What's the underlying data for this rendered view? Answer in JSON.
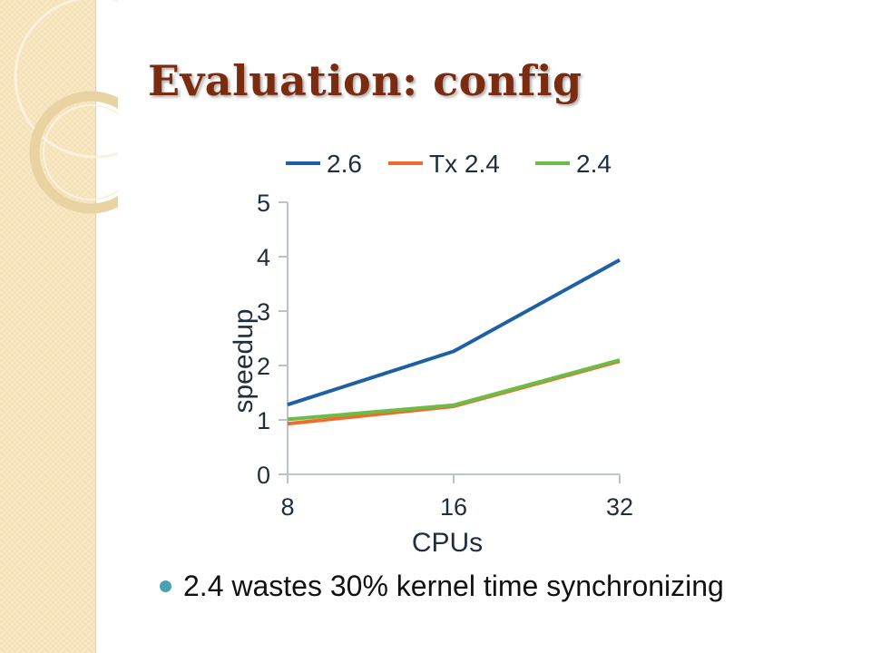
{
  "slide": {
    "title": "Evaluation: config",
    "bullet": "2.4 wastes 30% kernel time synchronizing"
  },
  "colors": {
    "title": "#7a2b10",
    "strip": "#f5e2b8",
    "bullet_dot": "#4aa3b0"
  },
  "chart_data": {
    "type": "line",
    "title": "",
    "xlabel": "CPUs",
    "ylabel": "speedup",
    "x": [
      "8",
      "16",
      "32"
    ],
    "yticks": [
      "0",
      "1",
      "2",
      "3",
      "4",
      "5"
    ],
    "ylim": [
      0,
      5
    ],
    "grid": false,
    "legend": "top",
    "series": [
      {
        "name": "2.6",
        "color": "#1f5fa4",
        "values": [
          1.28,
          2.26,
          3.94
        ]
      },
      {
        "name": "Tx 2.4",
        "color": "#f26b2d",
        "values": [
          0.93,
          1.25,
          2.08
        ]
      },
      {
        "name": "2.4",
        "color": "#6cbd45",
        "values": [
          1.01,
          1.27,
          2.1
        ]
      }
    ]
  }
}
